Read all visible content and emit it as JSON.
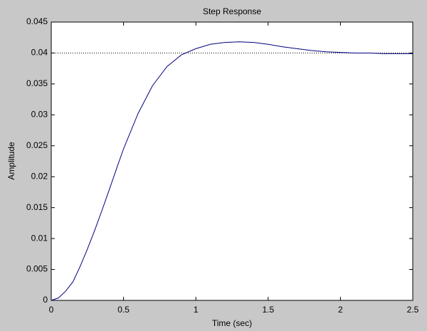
{
  "chart_data": {
    "type": "line",
    "title": "Step Response",
    "xlabel": "Time (sec)",
    "ylabel": "Amplitude",
    "x": [
      0,
      0.05,
      0.1,
      0.15,
      0.2,
      0.25,
      0.3,
      0.35,
      0.4,
      0.45,
      0.5,
      0.6,
      0.7,
      0.8,
      0.9,
      1.0,
      1.1,
      1.2,
      1.3,
      1.4,
      1.5,
      1.6,
      1.7,
      1.8,
      1.9,
      2.0,
      2.1,
      2.2,
      2.3,
      2.4,
      2.5
    ],
    "series": [
      {
        "color": "#000080",
        "values": [
          0,
          0.0004,
          0.0015,
          0.003,
          0.0055,
          0.0083,
          0.0113,
          0.0145,
          0.0178,
          0.0212,
          0.0245,
          0.0302,
          0.0347,
          0.0378,
          0.0397,
          0.0407,
          0.0414,
          0.0417,
          0.0418,
          0.0417,
          0.0414,
          0.041,
          0.0407,
          0.0404,
          0.0402,
          0.0401,
          0.04,
          0.04,
          0.0399,
          0.0399,
          0.0399
        ]
      }
    ],
    "reference_line": 0.04,
    "xlim": [
      0,
      2.5
    ],
    "xticks": [
      0,
      0.5,
      1,
      1.5,
      2,
      2.5
    ],
    "ylim": [
      0,
      0.045
    ],
    "yticks": [
      0,
      0.005,
      0.01,
      0.015,
      0.02,
      0.025,
      0.03,
      0.035,
      0.04,
      0.045
    ]
  }
}
